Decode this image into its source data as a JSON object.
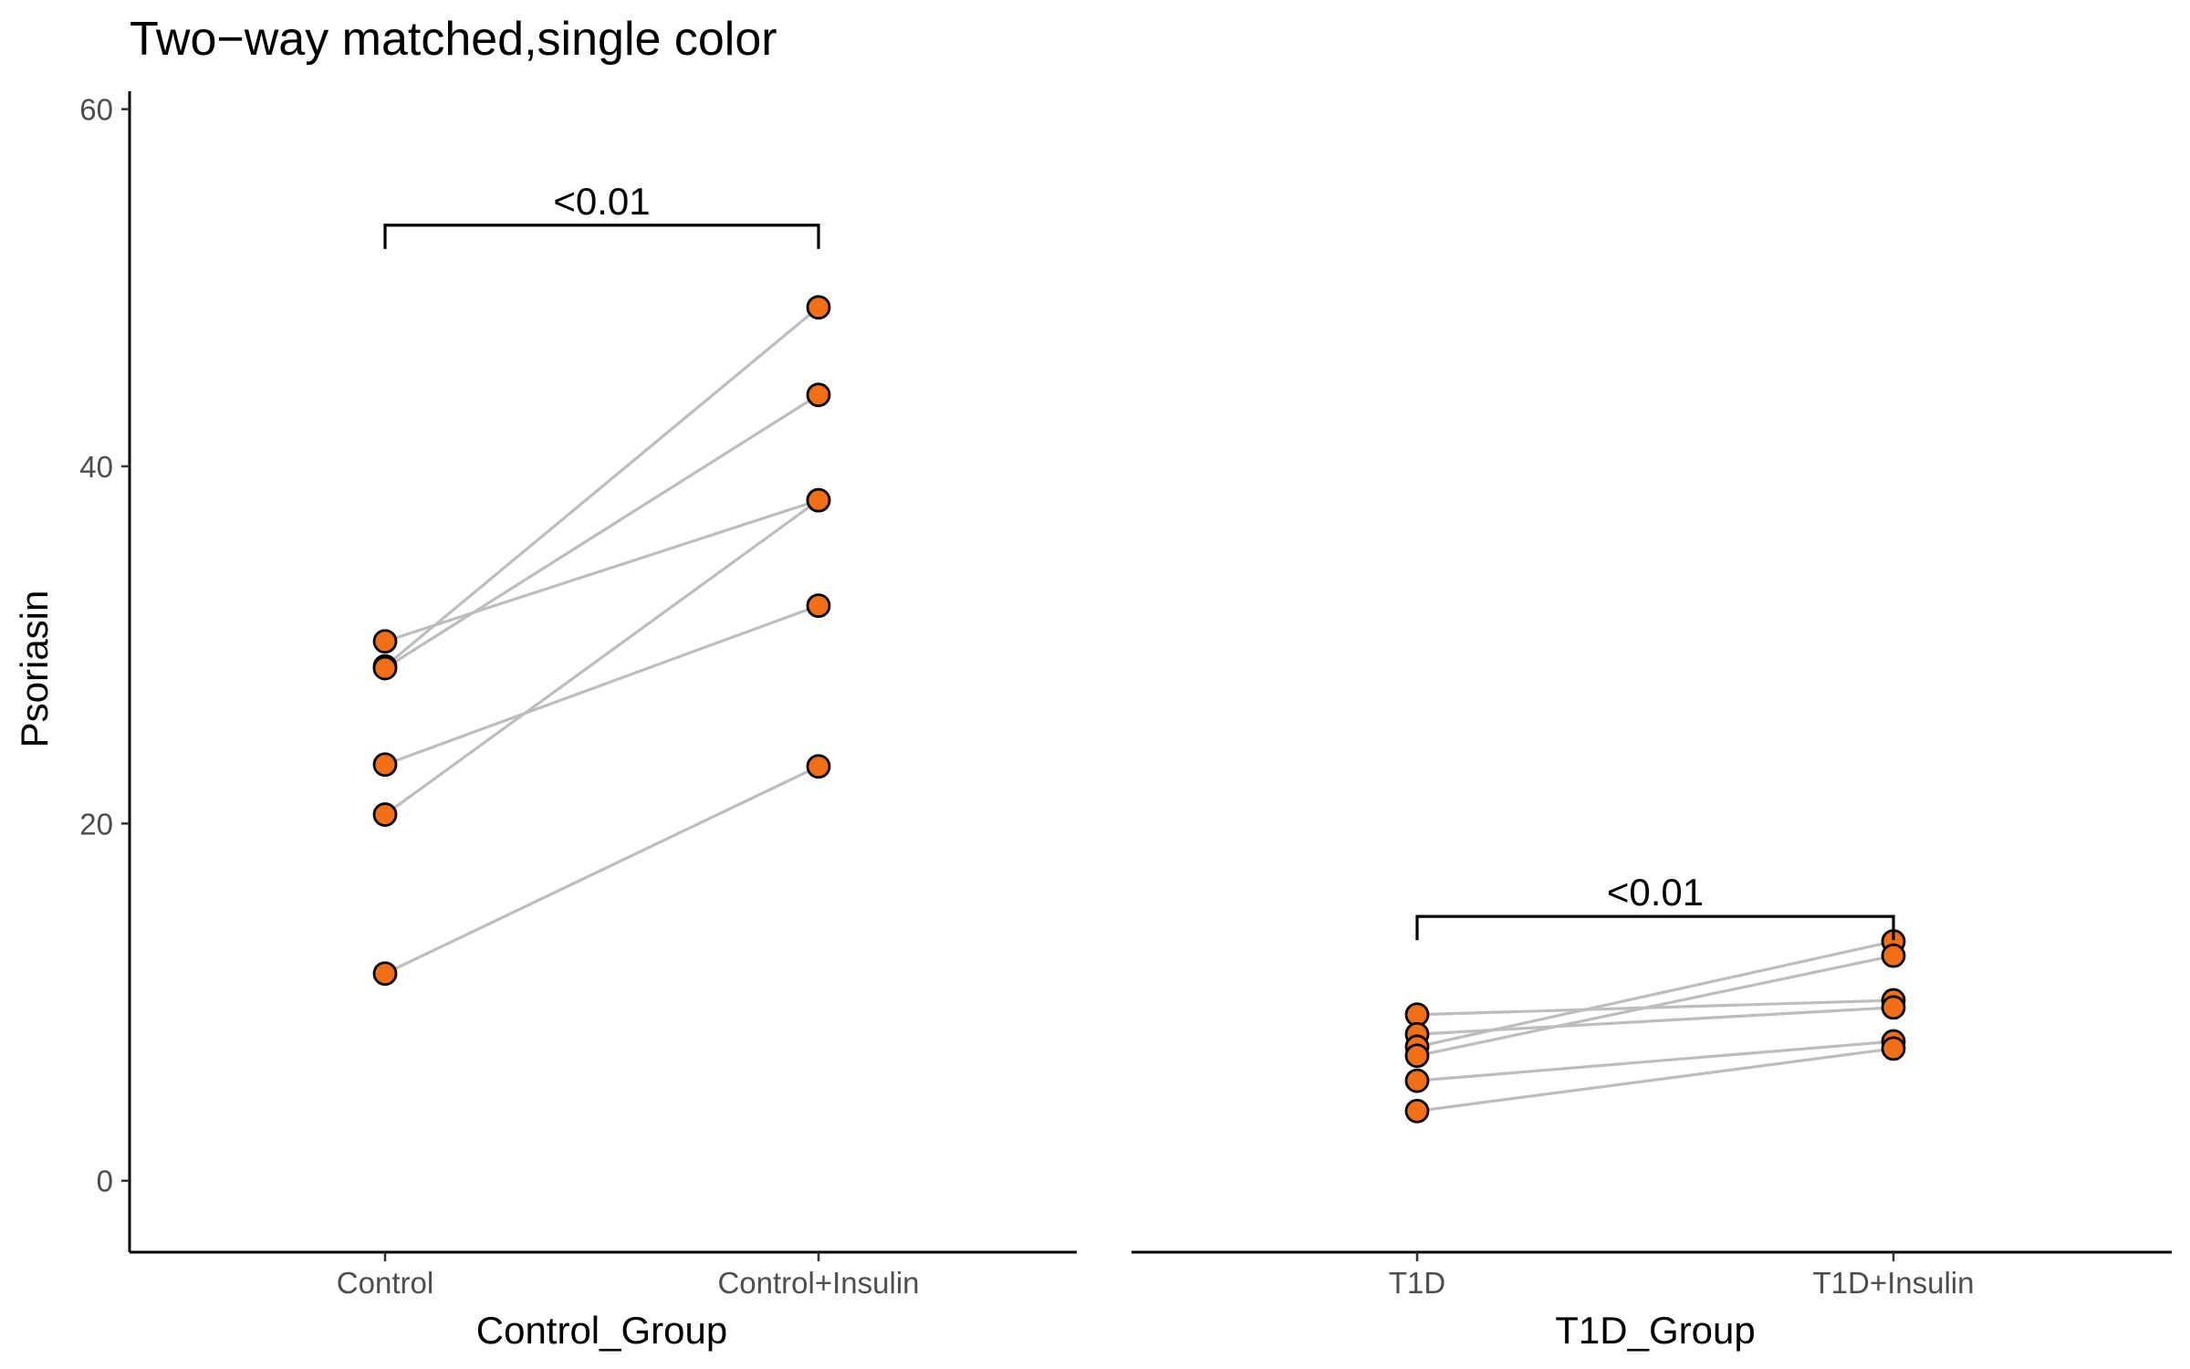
{
  "chart_data": {
    "type": "scatter",
    "title": "Two−way matched,single color",
    "ylabel": "Psoriasin",
    "ylim": [
      -4,
      61
    ],
    "yticks": [
      0,
      20,
      40,
      60
    ],
    "grid": false,
    "legend": "none",
    "colors": {
      "point_fill": "#f36f16",
      "point_stroke": "#000000",
      "line": "#bdbdbd",
      "axis": "#000000"
    },
    "panels": [
      {
        "xlabel": "Control_Group",
        "categories": [
          "Control",
          "Control+Insulin"
        ],
        "pairs": [
          {
            "before": 30.2,
            "after": 38.1
          },
          {
            "before": 28.8,
            "after": 48.9
          },
          {
            "before": 28.7,
            "after": 44.0
          },
          {
            "before": 23.3,
            "after": 32.2
          },
          {
            "before": 20.5,
            "after": 38.1
          },
          {
            "before": 11.6,
            "after": 23.2
          }
        ],
        "annotation": {
          "label": "<0.01",
          "y": 53.5
        }
      },
      {
        "xlabel": "T1D_Group",
        "categories": [
          "T1D",
          "T1D+Insulin"
        ],
        "pairs": [
          {
            "before": 9.3,
            "after": 10.1
          },
          {
            "before": 8.2,
            "after": 9.7
          },
          {
            "before": 7.5,
            "after": 13.4
          },
          {
            "before": 7.0,
            "after": 12.6
          },
          {
            "before": 5.6,
            "after": 7.8
          },
          {
            "before": 3.9,
            "after": 7.4
          }
        ],
        "annotation": {
          "label": "<0.01",
          "y": 14.8
        }
      }
    ]
  }
}
